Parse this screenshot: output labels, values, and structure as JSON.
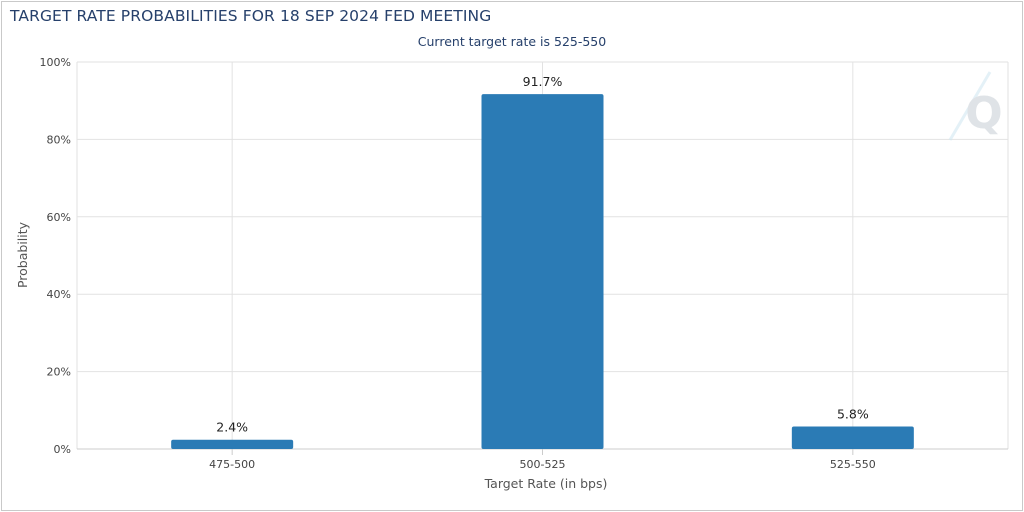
{
  "header": {
    "title": "TARGET RATE PROBABILITIES FOR 18 SEP 2024 FED MEETING",
    "subtitle": "Current target rate is 525-550"
  },
  "colors": {
    "bar": "#2b7bb5",
    "title": "#26406b",
    "grid": "#e2e2e2"
  },
  "watermark": {
    "icon": "q-logo-icon"
  },
  "chart_data": {
    "type": "bar",
    "title": "TARGET RATE PROBABILITIES FOR 18 SEP 2024 FED MEETING",
    "subtitle": "Current target rate is 525-550",
    "xlabel": "Target Rate (in bps)",
    "ylabel": "Probability",
    "categories": [
      "475-500",
      "500-525",
      "525-550"
    ],
    "values": [
      2.4,
      91.7,
      5.8
    ],
    "data_labels": [
      "2.4%",
      "91.7%",
      "5.8%"
    ],
    "ylim": [
      0,
      100
    ],
    "y_ticks": [
      0,
      20,
      40,
      60,
      80,
      100
    ],
    "y_tick_labels": [
      "0%",
      "20%",
      "40%",
      "60%",
      "80%",
      "100%"
    ],
    "grid": true,
    "legend": "none"
  }
}
